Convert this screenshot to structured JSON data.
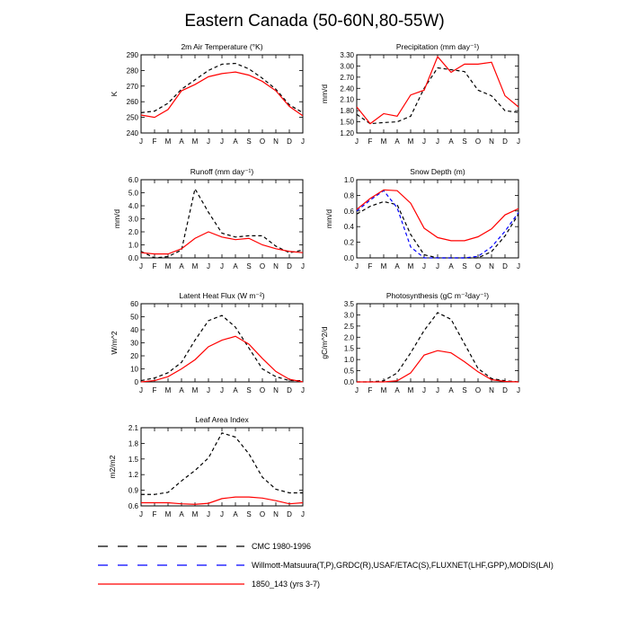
{
  "figure": {
    "title": "Eastern Canada (50-60N,80-55W)",
    "legend": [
      {
        "label": "CMC 1980-1996",
        "color": "#000000",
        "dash": "dashed"
      },
      {
        "label": "Willmott-Matsuura(T,P),GRDC(R),USAF/ETAC(S),FLUXNET(LHF,GPP),MODIS(LAI)",
        "color": "#0000ff",
        "dash": "dashed"
      },
      {
        "label": "1850_143 (yrs 3-7)",
        "color": "#ff0000",
        "dash": "solid"
      }
    ]
  },
  "chart_data": [
    {
      "type": "line",
      "title": "2m Air Temperature (°K)",
      "ylabel": "K",
      "ylim": [
        240,
        290
      ],
      "yticks": [
        "240",
        "250",
        "260",
        "270",
        "280",
        "290"
      ],
      "categories": [
        "J",
        "F",
        "M",
        "A",
        "M",
        "J",
        "J",
        "A",
        "S",
        "O",
        "N",
        "D",
        "J"
      ],
      "series": [
        {
          "name": "CMC 1980-1996",
          "color": "#000000",
          "dashed": true,
          "values": [
            253,
            254,
            259,
            268,
            274,
            280,
            284,
            284.5,
            281,
            275,
            268,
            258,
            253
          ]
        },
        {
          "name": "1850_143 (yrs 3-7)",
          "color": "#ff0000",
          "dashed": false,
          "values": [
            251.5,
            250,
            255,
            267,
            271,
            276,
            278,
            279,
            277,
            273,
            267,
            257,
            251
          ]
        }
      ]
    },
    {
      "type": "line",
      "title": "Precipitation (mm day⁻¹)",
      "ylabel": "mm/d",
      "ylim": [
        1.2,
        3.3
      ],
      "yticks": [
        "1.20",
        "1.50",
        "1.80",
        "2.10",
        "2.40",
        "2.70",
        "3.00",
        "3.30"
      ],
      "categories": [
        "J",
        "F",
        "M",
        "A",
        "M",
        "J",
        "J",
        "A",
        "S",
        "O",
        "N",
        "D",
        "J"
      ],
      "series": [
        {
          "name": "CMC 1980-1996",
          "color": "#000000",
          "dashed": true,
          "values": [
            1.7,
            1.45,
            1.48,
            1.5,
            1.65,
            2.4,
            2.95,
            2.9,
            2.85,
            2.35,
            2.2,
            1.8,
            1.75
          ]
        },
        {
          "name": "1850_143 (yrs 3-7)",
          "color": "#ff0000",
          "dashed": false,
          "values": [
            1.9,
            1.45,
            1.72,
            1.65,
            2.22,
            2.35,
            3.25,
            2.83,
            3.05,
            3.05,
            3.1,
            2.2,
            1.9
          ]
        }
      ]
    },
    {
      "type": "line",
      "title": "Runoff (mm day⁻¹)",
      "ylabel": "mm/d",
      "ylim": [
        0,
        6
      ],
      "yticks": [
        "0.0",
        "1.0",
        "2.0",
        "3.0",
        "4.0",
        "5.0",
        "6.0"
      ],
      "categories": [
        "J",
        "F",
        "M",
        "A",
        "M",
        "J",
        "J",
        "A",
        "S",
        "O",
        "N",
        "D",
        "J"
      ],
      "series": [
        {
          "name": "CMC 1980-1996",
          "color": "#000000",
          "dashed": true,
          "values": [
            0.5,
            0.0,
            0.1,
            0.6,
            5.3,
            3.5,
            1.9,
            1.6,
            1.7,
            1.7,
            0.9,
            0.4,
            0.6
          ]
        },
        {
          "name": "1850_143 (yrs 3-7)",
          "color": "#ff0000",
          "dashed": false,
          "values": [
            0.4,
            0.3,
            0.3,
            0.7,
            1.5,
            2.0,
            1.6,
            1.4,
            1.5,
            1.0,
            0.7,
            0.5,
            0.4
          ]
        }
      ]
    },
    {
      "type": "line",
      "title": "Snow Depth (m)",
      "ylabel": "mm/d",
      "ylim": [
        0,
        1
      ],
      "yticks": [
        "0.0",
        "0.2",
        "0.4",
        "0.6",
        "0.8",
        "1.0"
      ],
      "categories": [
        "J",
        "F",
        "M",
        "A",
        "M",
        "J",
        "J",
        "A",
        "S",
        "O",
        "N",
        "D",
        "J"
      ],
      "series": [
        {
          "name": "CMC 1980-1996",
          "color": "#000000",
          "dashed": true,
          "values": [
            0.56,
            0.66,
            0.72,
            0.68,
            0.3,
            0.04,
            0.0,
            0.0,
            0.0,
            0.0,
            0.08,
            0.28,
            0.56
          ]
        },
        {
          "name": "Willmott-Matsuura(T,P),GRDC(R),USAF/ETAC(S),FLUXNET(LHF,GPP),MODIS(LAI)",
          "color": "#0000ff",
          "dashed": true,
          "values": [
            0.6,
            0.74,
            0.86,
            0.64,
            0.14,
            0.0,
            0.0,
            0.0,
            0.0,
            0.02,
            0.14,
            0.34,
            0.58
          ]
        },
        {
          "name": "1850_143 (yrs 3-7)",
          "color": "#ff0000",
          "dashed": false,
          "values": [
            0.62,
            0.76,
            0.87,
            0.86,
            0.7,
            0.38,
            0.26,
            0.22,
            0.22,
            0.27,
            0.37,
            0.55,
            0.63
          ]
        }
      ]
    },
    {
      "type": "line",
      "title": "Latent Heat Flux (W m⁻²)",
      "ylabel": "W/m^2",
      "ylim": [
        0,
        60
      ],
      "yticks": [
        "0",
        "10",
        "20",
        "30",
        "40",
        "50",
        "60"
      ],
      "categories": [
        "J",
        "F",
        "M",
        "A",
        "M",
        "J",
        "J",
        "A",
        "S",
        "O",
        "N",
        "D",
        "J"
      ],
      "series": [
        {
          "name": "CMC 1980-1996",
          "color": "#000000",
          "dashed": true,
          "values": [
            1,
            3,
            7,
            15,
            32,
            47,
            51,
            42,
            26,
            10,
            4,
            1,
            1
          ]
        },
        {
          "name": "1850_143 (yrs 3-7)",
          "color": "#ff0000",
          "dashed": false,
          "values": [
            0,
            1,
            4,
            10,
            17,
            27,
            32,
            35,
            29,
            18,
            8,
            2,
            0
          ]
        }
      ]
    },
    {
      "type": "line",
      "title": "Photosynthesis (gC m⁻²day⁻¹)",
      "ylabel": "gC/m^2/d",
      "ylim": [
        0,
        3.5
      ],
      "yticks": [
        "0.0",
        "0.5",
        "1.0",
        "1.5",
        "2.0",
        "2.5",
        "3.0",
        "3.5"
      ],
      "categories": [
        "J",
        "F",
        "M",
        "A",
        "M",
        "J",
        "J",
        "A",
        "S",
        "O",
        "N",
        "D",
        "J"
      ],
      "series": [
        {
          "name": "CMC 1980-1996",
          "color": "#000000",
          "dashed": true,
          "values": [
            0.0,
            0.0,
            0.05,
            0.4,
            1.3,
            2.3,
            3.1,
            2.8,
            1.7,
            0.6,
            0.15,
            0.05,
            0.0
          ]
        },
        {
          "name": "1850_143 (yrs 3-7)",
          "color": "#ff0000",
          "dashed": false,
          "values": [
            0.0,
            0.0,
            0.0,
            0.05,
            0.4,
            1.2,
            1.4,
            1.3,
            0.9,
            0.45,
            0.1,
            0.02,
            0.0
          ]
        }
      ]
    },
    {
      "type": "line",
      "title": "Leaf Area Index",
      "ylabel": "m2/m2",
      "ylim": [
        0.6,
        2.1
      ],
      "yticks": [
        "0.6",
        "0.9",
        "1.2",
        "1.5",
        "1.8",
        "2.1"
      ],
      "categories": [
        "J",
        "F",
        "M",
        "A",
        "M",
        "J",
        "J",
        "A",
        "S",
        "O",
        "N",
        "D",
        "J"
      ],
      "series": [
        {
          "name": "CMC 1980-1996",
          "color": "#000000",
          "dashed": true,
          "values": [
            0.82,
            0.82,
            0.86,
            1.08,
            1.28,
            1.52,
            2.0,
            1.92,
            1.6,
            1.15,
            0.92,
            0.85,
            0.85
          ]
        },
        {
          "name": "1850_143 (yrs 3-7)",
          "color": "#ff0000",
          "dashed": false,
          "values": [
            0.66,
            0.66,
            0.66,
            0.64,
            0.63,
            0.65,
            0.74,
            0.77,
            0.77,
            0.75,
            0.7,
            0.64,
            0.66
          ]
        }
      ]
    }
  ]
}
